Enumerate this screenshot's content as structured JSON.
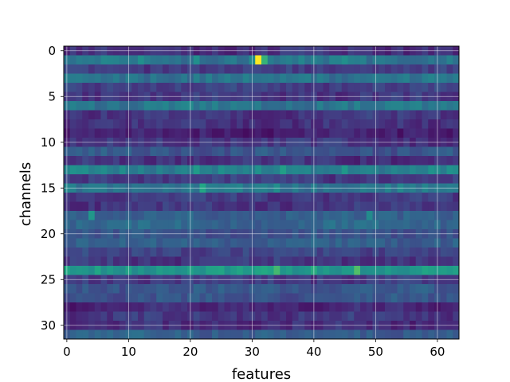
{
  "chart_data": {
    "type": "heatmap",
    "title": "",
    "xlabel": "features",
    "ylabel": "channels",
    "n_rows": 32,
    "n_cols": 64,
    "xticks": [
      0,
      10,
      20,
      30,
      40,
      50,
      60
    ],
    "yticks": [
      0,
      5,
      10,
      15,
      20,
      25,
      30
    ],
    "x_tick_labels": [
      "0",
      "10",
      "20",
      "30",
      "40",
      "50",
      "60"
    ],
    "y_tick_labels": [
      "0",
      "5",
      "10",
      "15",
      "20",
      "25",
      "30"
    ],
    "xlim": [
      -0.5,
      63.5
    ],
    "ylim": [
      31.5,
      -0.5
    ],
    "colormap": "viridis",
    "vmin": 0,
    "vmax": 1,
    "grid": true,
    "row_levels": [
      0.18,
      0.5,
      0.22,
      0.48,
      0.24,
      0.2,
      0.5,
      0.2,
      0.18,
      0.12,
      0.2,
      0.34,
      0.18,
      0.55,
      0.22,
      0.5,
      0.22,
      0.2,
      0.38,
      0.42,
      0.32,
      0.38,
      0.26,
      0.2,
      0.66,
      0.22,
      0.34,
      0.32,
      0.14,
      0.2,
      0.16,
      0.38
    ],
    "highlights": [
      {
        "row": 1,
        "col": 31,
        "value": 1.0
      },
      {
        "row": 1,
        "col": 32,
        "value": 0.78
      },
      {
        "row": 1,
        "col": 30,
        "value": 0.6
      },
      {
        "row": 1,
        "col": 12,
        "value": 0.62
      },
      {
        "row": 1,
        "col": 21,
        "value": 0.62
      },
      {
        "row": 1,
        "col": 45,
        "value": 0.62
      },
      {
        "row": 13,
        "col": 21,
        "value": 0.68
      },
      {
        "row": 13,
        "col": 35,
        "value": 0.7
      },
      {
        "row": 13,
        "col": 45,
        "value": 0.66
      },
      {
        "row": 15,
        "col": 22,
        "value": 0.74
      },
      {
        "row": 15,
        "col": 34,
        "value": 0.62
      },
      {
        "row": 18,
        "col": 4,
        "value": 0.66
      },
      {
        "row": 18,
        "col": 49,
        "value": 0.6
      },
      {
        "row": 24,
        "col": 34,
        "value": 0.8
      },
      {
        "row": 24,
        "col": 47,
        "value": 0.82
      },
      {
        "row": 24,
        "col": 40,
        "value": 0.76
      }
    ]
  }
}
